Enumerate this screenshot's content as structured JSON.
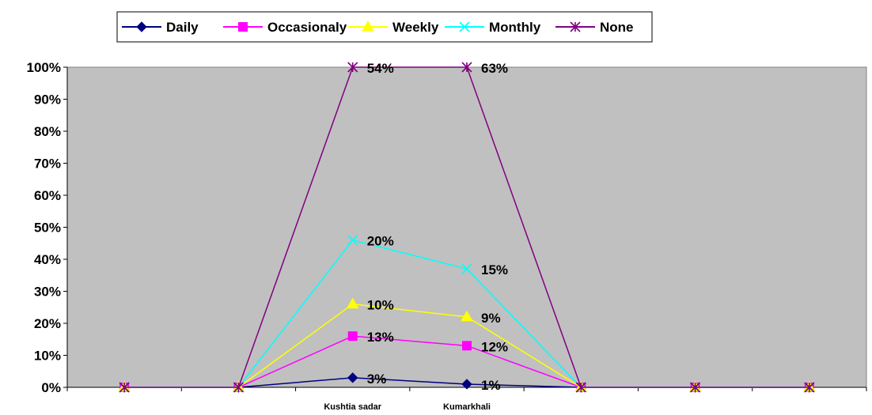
{
  "chart_data": {
    "type": "line",
    "title": "",
    "xlabel": "",
    "ylabel": "",
    "ylim": [
      0,
      100
    ],
    "y_ticks": [
      "0%",
      "10%",
      "20%",
      "30%",
      "40%",
      "50%",
      "60%",
      "70%",
      "80%",
      "90%",
      "100%"
    ],
    "grid": false,
    "legend_position": "top",
    "categories": [
      "",
      "",
      "Kushtia sadar",
      "Kumarkhali",
      "",
      "",
      ""
    ],
    "series": [
      {
        "name": "Daily",
        "color": "#000080",
        "marker": "diamond",
        "values": [
          0,
          0,
          3,
          1,
          0,
          0,
          0
        ],
        "labels": [
          "",
          "",
          "3%",
          "1%",
          "",
          "",
          ""
        ]
      },
      {
        "name": "Occasionaly",
        "color": "#ff00ff",
        "marker": "square",
        "values": [
          0,
          0,
          16,
          13,
          0,
          0,
          0
        ],
        "labels": [
          "",
          "",
          "13%",
          "12%",
          "",
          "",
          ""
        ]
      },
      {
        "name": "Weekly",
        "color": "#ffff00",
        "marker": "triangle",
        "values": [
          0,
          0,
          26,
          22,
          0,
          0,
          0
        ],
        "labels": [
          "",
          "",
          "10%",
          "9%",
          "",
          "",
          ""
        ]
      },
      {
        "name": "Monthly",
        "color": "#00ffff",
        "marker": "x",
        "values": [
          0,
          0,
          46,
          37,
          0,
          0,
          0
        ],
        "labels": [
          "",
          "",
          "20%",
          "15%",
          "",
          "",
          ""
        ]
      },
      {
        "name": "None",
        "color": "#800080",
        "marker": "star",
        "values": [
          0,
          0,
          100,
          100,
          0,
          0,
          0
        ],
        "labels": [
          "",
          "",
          "54%",
          "63%",
          "",
          "",
          ""
        ]
      }
    ],
    "plot_background": "#c0c0c0"
  }
}
